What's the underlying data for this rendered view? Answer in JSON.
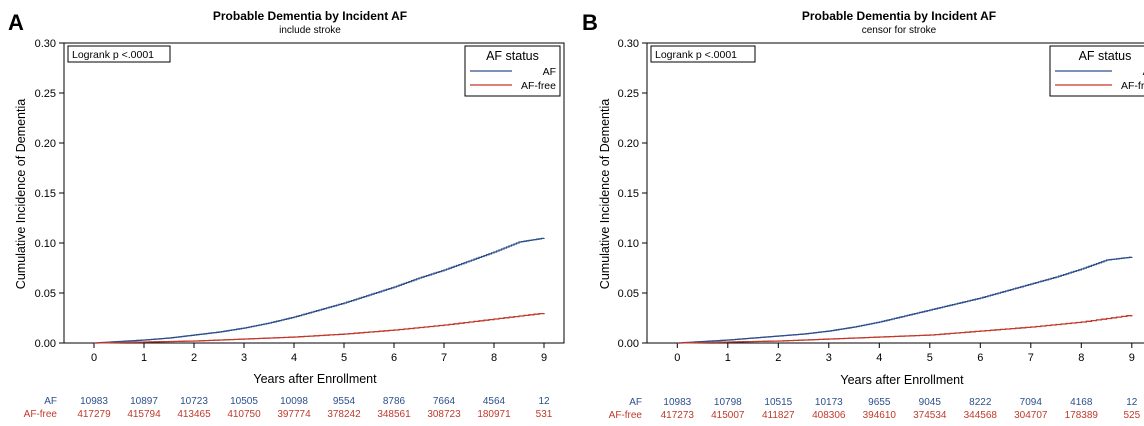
{
  "panels": [
    {
      "label": "A",
      "title": "Probable Dementia by Incident AF",
      "subtitle": "include stroke",
      "annotation": "Logrank p <.0001",
      "legend_title": "AF status",
      "risk_table": {
        "AF": [
          "10983",
          "10897",
          "10723",
          "10505",
          "10098",
          "9554",
          "8786",
          "7664",
          "4564",
          "12"
        ],
        "AF-free": [
          "417279",
          "415794",
          "413465",
          "410750",
          "397774",
          "378242",
          "348561",
          "308723",
          "180971",
          "531"
        ]
      }
    },
    {
      "label": "B",
      "title": "Probable Dementia by Incident AF",
      "subtitle": "censor for stroke",
      "annotation": "Logrank p <.0001",
      "legend_title": "AF status",
      "risk_table": {
        "AF": [
          "10983",
          "10798",
          "10515",
          "10173",
          "9655",
          "9045",
          "8222",
          "7094",
          "4168",
          "12"
        ],
        "AF-free": [
          "417273",
          "415007",
          "411827",
          "408306",
          "394610",
          "374534",
          "344568",
          "304707",
          "178389",
          "525"
        ]
      }
    }
  ],
  "colors": {
    "AF": "#2c4f8c",
    "AF-free": "#c0392b",
    "axis": "#000000",
    "frame": "#000000"
  },
  "chart_data": [
    {
      "type": "line",
      "step": true,
      "title": "Probable Dementia by Incident AF",
      "subtitle": "include stroke",
      "xlabel": "Years after Enrollment",
      "ylabel": "Cumulative Incidence of Dementia",
      "xlim": [
        -0.6,
        9.4
      ],
      "ylim": [
        0,
        0.3
      ],
      "xticks": [
        0,
        1,
        2,
        3,
        4,
        5,
        6,
        7,
        8,
        9
      ],
      "yticks": [
        0.0,
        0.05,
        0.1,
        0.15,
        0.2,
        0.25,
        0.3
      ],
      "ytick_labels": [
        "0.00",
        "0.05",
        "0.10",
        "0.15",
        "0.20",
        "0.25",
        "0.30"
      ],
      "grid": false,
      "legend_position": "top-right",
      "series": [
        {
          "name": "AF",
          "x": [
            0,
            0.5,
            1,
            1.5,
            2,
            2.5,
            3,
            3.5,
            4,
            4.5,
            5,
            5.5,
            6,
            6.5,
            7,
            7.5,
            8,
            8.5,
            9
          ],
          "y": [
            0.0,
            0.0015,
            0.003,
            0.005,
            0.008,
            0.011,
            0.015,
            0.02,
            0.026,
            0.033,
            0.04,
            0.048,
            0.056,
            0.065,
            0.073,
            0.082,
            0.091,
            0.101,
            0.105
          ]
        },
        {
          "name": "AF-free",
          "x": [
            0,
            1,
            2,
            3,
            4,
            5,
            6,
            7,
            8,
            9
          ],
          "y": [
            0.0,
            0.001,
            0.002,
            0.004,
            0.006,
            0.009,
            0.013,
            0.018,
            0.024,
            0.03
          ]
        }
      ]
    },
    {
      "type": "line",
      "step": true,
      "title": "Probable Dementia by Incident AF",
      "subtitle": "censor for stroke",
      "xlabel": "Years after Enrollment",
      "ylabel": "Cumulative Incidence of Dementia",
      "xlim": [
        -0.6,
        9.4
      ],
      "ylim": [
        0,
        0.3
      ],
      "xticks": [
        0,
        1,
        2,
        3,
        4,
        5,
        6,
        7,
        8,
        9
      ],
      "yticks": [
        0.0,
        0.05,
        0.1,
        0.15,
        0.2,
        0.25,
        0.3
      ],
      "ytick_labels": [
        "0.00",
        "0.05",
        "0.10",
        "0.15",
        "0.20",
        "0.25",
        "0.30"
      ],
      "grid": false,
      "legend_position": "top-right",
      "series": [
        {
          "name": "AF",
          "x": [
            0,
            0.5,
            1,
            1.5,
            2,
            2.5,
            3,
            3.5,
            4,
            4.5,
            5,
            5.5,
            6,
            6.5,
            7,
            7.5,
            8,
            8.5,
            9
          ],
          "y": [
            0.0,
            0.0015,
            0.003,
            0.005,
            0.007,
            0.009,
            0.012,
            0.016,
            0.021,
            0.027,
            0.033,
            0.039,
            0.045,
            0.052,
            0.059,
            0.066,
            0.074,
            0.083,
            0.086
          ]
        },
        {
          "name": "AF-free",
          "x": [
            0,
            1,
            2,
            3,
            4,
            5,
            6,
            7,
            8,
            9
          ],
          "y": [
            0.0,
            0.001,
            0.002,
            0.004,
            0.006,
            0.008,
            0.012,
            0.016,
            0.021,
            0.028
          ]
        }
      ]
    }
  ]
}
